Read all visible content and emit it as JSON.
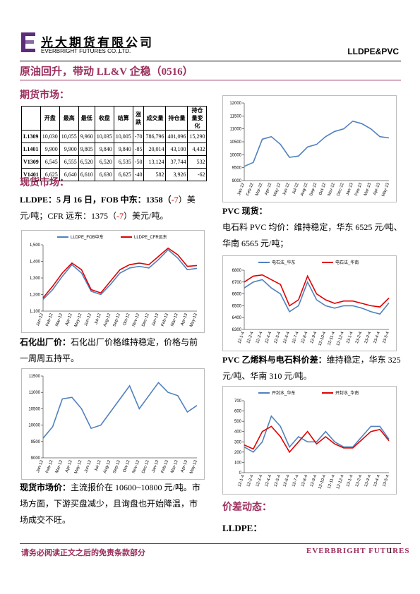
{
  "header": {
    "company": "光大期货有限公司",
    "company_en": "EVERBRIGHT FUTURES CO.,LTD.",
    "product": "LLDPE&PVC"
  },
  "headline": "原油回升，带动 LL&V 企稳（0516）",
  "futures_heading": "期货市场：",
  "table": {
    "header": [
      "",
      "开盘",
      "最高",
      "最低",
      "收盘",
      "结算",
      "涨跌",
      "成交量",
      "持仓量",
      "持仓量变化"
    ],
    "rows": [
      [
        "L1309",
        "10,030",
        "10,055",
        "9,960",
        "10,035",
        "10,005",
        "-70",
        "786,796",
        "401,096",
        "15,290"
      ],
      [
        "L1401",
        "9,900",
        "9,900",
        "9,805",
        "9,840",
        "9,840",
        "-85",
        "20,014",
        "43,100",
        "4,432"
      ],
      [
        "V1309",
        "6,545",
        "6,555",
        "6,520",
        "6,520",
        "6,535",
        "-50",
        "13,124",
        "37,744",
        "532"
      ],
      [
        "V1401",
        "6,625",
        "6,640",
        "6,610",
        "6,630",
        "6,625",
        "-40",
        "582",
        "3,926",
        "-62"
      ]
    ]
  },
  "spot_heading": "现货市场：",
  "lldpe_text": [
    "LLDPE：5 月 16 日，FOB 中东：1358（",
    "-7",
    "）美元/吨；CFR 远东：1375（",
    "-7",
    "）美元/吨。"
  ],
  "petro_label": "石化出厂价：",
  "petro_text": "石化出厂价格维持稳定，价格与前一周周五持平。",
  "spot_price_label": "现货市场价：",
  "spot_price_text": "主流报价在 10600~10800 元/吨。市场方面，下游买盘减少，且询盘也开始降温，市场成交不旺。",
  "pvc_heading": "PVC 现货：",
  "pvc_text": "电石料 PVC 均价：维持稳定，华东 6525 元/吨、华南 6565 元/吨；",
  "spread_label": "PVC 乙烯料与电石料价差：",
  "spread_text": "维持稳定，华东 325 元/吨、华南 310 元/吨。",
  "diff_heading": "价差动态：",
  "lldpe_heading": "LLDPE：",
  "footer": {
    "disclaimer": "请务必阅读正文之后的免责条款部分",
    "brand": "EVERBRIGHT FUTURES",
    "page": "1"
  },
  "chart_data": [
    {
      "type": "line",
      "categories": [
        "Jan-12",
        "Feb-12",
        "Mar-12",
        "Apr-12",
        "May-12",
        "Jun-12",
        "Jul-12",
        "Aug-12",
        "Sep-12",
        "Oct-12",
        "Nov-12",
        "Dec-12",
        "Jan-13",
        "Feb-13",
        "Mar-13",
        "Apr-13",
        "May-13"
      ],
      "values": [
        9550,
        9700,
        10600,
        10700,
        10400,
        9900,
        9950,
        10300,
        10400,
        10700,
        10900,
        11000,
        11300,
        11200,
        11000,
        10700,
        10650
      ],
      "color": "#4f81bd",
      "ylim": [
        9000,
        12000
      ],
      "yticks": [
        9000,
        9500,
        10000,
        10500,
        11000,
        11500,
        12000
      ]
    },
    {
      "type": "line",
      "categories": [
        "Jan-12",
        "Feb-12",
        "Mar-12",
        "Apr-12",
        "May-12",
        "Jun-12",
        "Jul-12",
        "Aug-12",
        "Sep-12",
        "Oct-12",
        "Nov-12",
        "Dec-12",
        "Jan-13",
        "Feb-13",
        "Mar-13",
        "Apr-13",
        "May-13"
      ],
      "series": [
        {
          "name": "LLDPE_FOB中东",
          "color": "#4f81bd",
          "values": [
            1170,
            1230,
            1310,
            1380,
            1330,
            1220,
            1200,
            1260,
            1330,
            1360,
            1370,
            1360,
            1410,
            1470,
            1420,
            1350,
            1358
          ]
        },
        {
          "name": "LLDPE_CFR远东",
          "color": "#e00000",
          "values": [
            1180,
            1250,
            1330,
            1390,
            1350,
            1230,
            1210,
            1280,
            1350,
            1380,
            1390,
            1380,
            1430,
            1480,
            1440,
            1370,
            1375
          ]
        }
      ],
      "ylim": [
        1100,
        1500
      ],
      "yticks": [
        {
          "value": 1100,
          "label": "1,100"
        },
        {
          "value": 1200,
          "label": "1,200"
        },
        {
          "value": 1300,
          "label": "1,300"
        },
        {
          "value": 1400,
          "label": "1,400"
        },
        {
          "value": 1500,
          "label": "1,500"
        }
      ]
    },
    {
      "type": "line",
      "categories": [
        "Jan-12",
        "Feb-12",
        "Mar-12",
        "Apr-12",
        "May-12",
        "Jun-12",
        "Jul-12",
        "Aug-12",
        "Sep-12",
        "Oct-12",
        "Nov-12",
        "Dec-12",
        "Jan-13",
        "Feb-13",
        "Mar-13",
        "Apr-13",
        "May-13"
      ],
      "values": [
        9600,
        9950,
        10800,
        10850,
        10500,
        9900,
        10000,
        10400,
        10800,
        11200,
        10500,
        10900,
        11300,
        11000,
        10900,
        10400,
        10600
      ],
      "color": "#4f81bd",
      "ylim": [
        9000,
        11500
      ],
      "yticks": [
        9000,
        9500,
        10000,
        10500,
        11000,
        11500
      ]
    },
    {
      "type": "line",
      "categories": [
        "12-1-4",
        "12-2-4",
        "12-3-4",
        "12-4-4",
        "12-5-4",
        "12-6-4",
        "12-7-4",
        "12-8-4",
        "12-9-4",
        "12-10-4",
        "12-11-4",
        "12-12-4",
        "13-1-4",
        "13-2-4",
        "13-3-4",
        "13-4-4",
        "13-5-4"
      ],
      "series": [
        {
          "name": "电石法_华东",
          "color": "#4f81bd",
          "values": [
            6650,
            6700,
            6720,
            6650,
            6600,
            6450,
            6500,
            6700,
            6550,
            6500,
            6480,
            6500,
            6500,
            6480,
            6450,
            6430,
            6525
          ]
        },
        {
          "name": "电石法_华南",
          "color": "#e00000",
          "values": [
            6700,
            6750,
            6760,
            6720,
            6680,
            6500,
            6550,
            6750,
            6600,
            6550,
            6520,
            6540,
            6540,
            6520,
            6500,
            6490,
            6565
          ]
        }
      ],
      "ylim": [
        6300,
        6800
      ],
      "yticks": [
        6300,
        6400,
        6500,
        6600,
        6700,
        6800
      ]
    },
    {
      "type": "line",
      "categories": [
        "12-1-4",
        "12-2-4",
        "12-3-4",
        "12-4-4",
        "12-5-4",
        "12-6-4",
        "12-7-4",
        "12-8-4",
        "12-9-4",
        "12-10-4",
        "12-11-4",
        "12-12-4",
        "13-1-4",
        "13-2-4",
        "13-3-4",
        "13-4-4",
        "13-5-4"
      ],
      "series": [
        {
          "name": "开封水_华东",
          "color": "#4f81bd",
          "values": [
            250,
            200,
            300,
            550,
            450,
            250,
            350,
            300,
            300,
            400,
            300,
            250,
            250,
            350,
            450,
            450,
            325
          ]
        },
        {
          "name": "开封水_华南",
          "color": "#e00000",
          "values": [
            270,
            230,
            400,
            450,
            350,
            200,
            300,
            400,
            280,
            350,
            280,
            240,
            240,
            320,
            400,
            420,
            310
          ]
        }
      ],
      "ylim": [
        0,
        700
      ],
      "yticks": [
        0,
        100,
        200,
        300,
        400,
        500,
        600,
        700
      ]
    }
  ]
}
